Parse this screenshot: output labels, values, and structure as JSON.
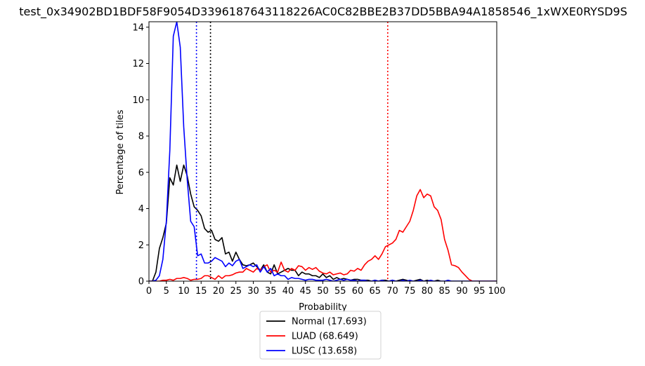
{
  "chart_data": {
    "type": "line",
    "title": "test_0x34902BD1BDF58F9054D3396187643118226AC0C82BBE2B37DD5BBA94A1858546_1xWXE0RYSD9S",
    "xlabel": "Probability",
    "ylabel": "Percentage of tiles",
    "xlim": [
      0,
      100
    ],
    "ylim": [
      0,
      14.3
    ],
    "xticks": [
      "0",
      "5",
      "10",
      "15",
      "20",
      "25",
      "30",
      "35",
      "40",
      "45",
      "50",
      "55",
      "60",
      "65",
      "70",
      "75",
      "80",
      "85",
      "90",
      "95",
      "100"
    ],
    "yticks": [
      "0",
      "2",
      "4",
      "6",
      "8",
      "10",
      "12",
      "14"
    ],
    "grid": false,
    "legend_placement": "below-center",
    "series": [
      {
        "name": "Normal (17.693)",
        "color": "#000000",
        "threshold": 17.693,
        "x": [
          0,
          1,
          2,
          3,
          4,
          5,
          6,
          7,
          8,
          9,
          10,
          11,
          12,
          13,
          14,
          15,
          16,
          17,
          18,
          19,
          20,
          21,
          22,
          23,
          24,
          25,
          26,
          27,
          28,
          29,
          30,
          31,
          32,
          33,
          34,
          35,
          36,
          37,
          38,
          39,
          40,
          41,
          42,
          43,
          44,
          45,
          46,
          47,
          48,
          49,
          50,
          51,
          52,
          53,
          54,
          55,
          56,
          57,
          58,
          59,
          60,
          61,
          62,
          63,
          64,
          65,
          66,
          67,
          68,
          69,
          70,
          71,
          72,
          73,
          74,
          75,
          76,
          77,
          78,
          79,
          80,
          81,
          82,
          83,
          84,
          85,
          86,
          87,
          88,
          89,
          90,
          91,
          92,
          93,
          94,
          95,
          96,
          97,
          98,
          99,
          100
        ],
        "y": [
          0,
          0,
          0.5,
          1.8,
          2.4,
          3.2,
          5.7,
          5.3,
          6.4,
          5.5,
          6.4,
          5.8,
          4.8,
          4.1,
          3.9,
          3.6,
          2.9,
          2.7,
          2.8,
          2.3,
          2.2,
          2.4,
          1.5,
          1.6,
          1.1,
          1.6,
          1.2,
          0.9,
          0.85,
          0.9,
          1.0,
          0.8,
          0.6,
          0.9,
          0.5,
          0.4,
          0.9,
          0.4,
          0.5,
          0.6,
          0.7,
          0.6,
          0.6,
          0.3,
          0.5,
          0.4,
          0.4,
          0.3,
          0.3,
          0.2,
          0.4,
          0.2,
          0.3,
          0.1,
          0.2,
          0.1,
          0.15,
          0.1,
          0.05,
          0.1,
          0.1,
          0.05,
          0.05,
          0.05,
          0.0,
          0.05,
          0.0,
          0.05,
          0.05,
          0,
          0.05,
          0,
          0.05,
          0.1,
          0.05,
          0,
          0,
          0.05,
          0.1,
          0,
          0.05,
          0,
          0,
          0.05,
          0,
          0,
          0,
          0,
          0,
          0,
          0,
          0,
          0,
          0,
          0,
          0,
          0,
          0,
          0,
          0,
          0
        ]
      },
      {
        "name": "LUAD (68.649)",
        "color": "#ff0000",
        "threshold": 68.649,
        "x": [
          0,
          1,
          2,
          3,
          4,
          5,
          6,
          7,
          8,
          9,
          10,
          11,
          12,
          13,
          14,
          15,
          16,
          17,
          18,
          19,
          20,
          21,
          22,
          23,
          24,
          25,
          26,
          27,
          28,
          29,
          30,
          31,
          32,
          33,
          34,
          35,
          36,
          37,
          38,
          39,
          40,
          41,
          42,
          43,
          44,
          45,
          46,
          47,
          48,
          49,
          50,
          51,
          52,
          53,
          54,
          55,
          56,
          57,
          58,
          59,
          60,
          61,
          62,
          63,
          64,
          65,
          66,
          67,
          68,
          69,
          70,
          71,
          72,
          73,
          74,
          75,
          76,
          77,
          78,
          79,
          80,
          81,
          82,
          83,
          84,
          85,
          86,
          87,
          88,
          89,
          90,
          91,
          92,
          93,
          94,
          95,
          96,
          97,
          98,
          99,
          100
        ],
        "y": [
          0,
          0,
          0,
          0,
          0.05,
          0.05,
          0.1,
          0.05,
          0.15,
          0.15,
          0.2,
          0.15,
          0.05,
          0.1,
          0.1,
          0.15,
          0.3,
          0.3,
          0.2,
          0.1,
          0.3,
          0.15,
          0.3,
          0.3,
          0.35,
          0.45,
          0.5,
          0.5,
          0.7,
          0.6,
          0.5,
          0.7,
          0.6,
          0.8,
          0.9,
          0.5,
          0.6,
          0.5,
          1.05,
          0.6,
          0.5,
          0.7,
          0.6,
          0.85,
          0.8,
          0.6,
          0.75,
          0.65,
          0.75,
          0.55,
          0.45,
          0.4,
          0.5,
          0.35,
          0.4,
          0.45,
          0.35,
          0.4,
          0.6,
          0.55,
          0.7,
          0.6,
          0.9,
          1.1,
          1.2,
          1.4,
          1.2,
          1.5,
          1.9,
          2.0,
          2.1,
          2.3,
          2.8,
          2.7,
          3.0,
          3.3,
          3.9,
          4.7,
          5.05,
          4.6,
          4.8,
          4.7,
          4.1,
          3.9,
          3.4,
          2.3,
          1.7,
          0.9,
          0.85,
          0.75,
          0.5,
          0.3,
          0.1,
          0,
          0,
          0,
          0,
          0,
          0,
          0,
          0
        ]
      },
      {
        "name": "LUSC (13.658)",
        "color": "#0000ff",
        "threshold": 13.658,
        "x": [
          0,
          1,
          2,
          3,
          4,
          5,
          6,
          7,
          8,
          9,
          10,
          11,
          12,
          13,
          14,
          15,
          16,
          17,
          18,
          19,
          20,
          21,
          22,
          23,
          24,
          25,
          26,
          27,
          28,
          29,
          30,
          31,
          32,
          33,
          34,
          35,
          36,
          37,
          38,
          39,
          40,
          41,
          42,
          43,
          44,
          45,
          46,
          47,
          48,
          49,
          50,
          51,
          52,
          53,
          54,
          55,
          56,
          57,
          58,
          59,
          60,
          61,
          62,
          63,
          64,
          65,
          66,
          67,
          68,
          69,
          70,
          71,
          72,
          73,
          74,
          75,
          76,
          77,
          78,
          79,
          80,
          81,
          82,
          83,
          84,
          85,
          86,
          87,
          88,
          89,
          90,
          91,
          92,
          93,
          94,
          95,
          96,
          97,
          98,
          99,
          100
        ],
        "y": [
          0,
          0,
          0.05,
          0.3,
          1.2,
          3.3,
          7.2,
          13.5,
          14.3,
          12.9,
          8.5,
          5.6,
          3.3,
          3.0,
          1.4,
          1.5,
          1.0,
          1.0,
          1.1,
          1.3,
          1.2,
          1.1,
          0.8,
          1.0,
          0.85,
          1.1,
          1.2,
          0.7,
          0.8,
          0.9,
          0.8,
          0.9,
          0.5,
          0.8,
          0.5,
          0.7,
          0.3,
          0.4,
          0.3,
          0.3,
          0.1,
          0.2,
          0.15,
          0.15,
          0.1,
          0.05,
          0.1,
          0.1,
          0.05,
          0.05,
          0.05,
          0.1,
          0.05,
          0.0,
          0.05,
          0.1,
          0.05,
          0.1,
          0.05,
          0.05,
          0.0,
          0.05,
          0.05,
          0,
          0,
          0.05,
          0,
          0.05,
          0,
          0,
          0.05,
          0,
          0,
          0.05,
          0,
          0.05,
          0,
          0,
          0.05,
          0,
          0,
          0.05,
          0,
          0,
          0,
          0,
          0.05,
          0,
          0,
          0,
          0,
          0,
          0,
          0,
          0,
          0,
          0,
          0,
          0,
          0,
          0
        ]
      }
    ]
  }
}
